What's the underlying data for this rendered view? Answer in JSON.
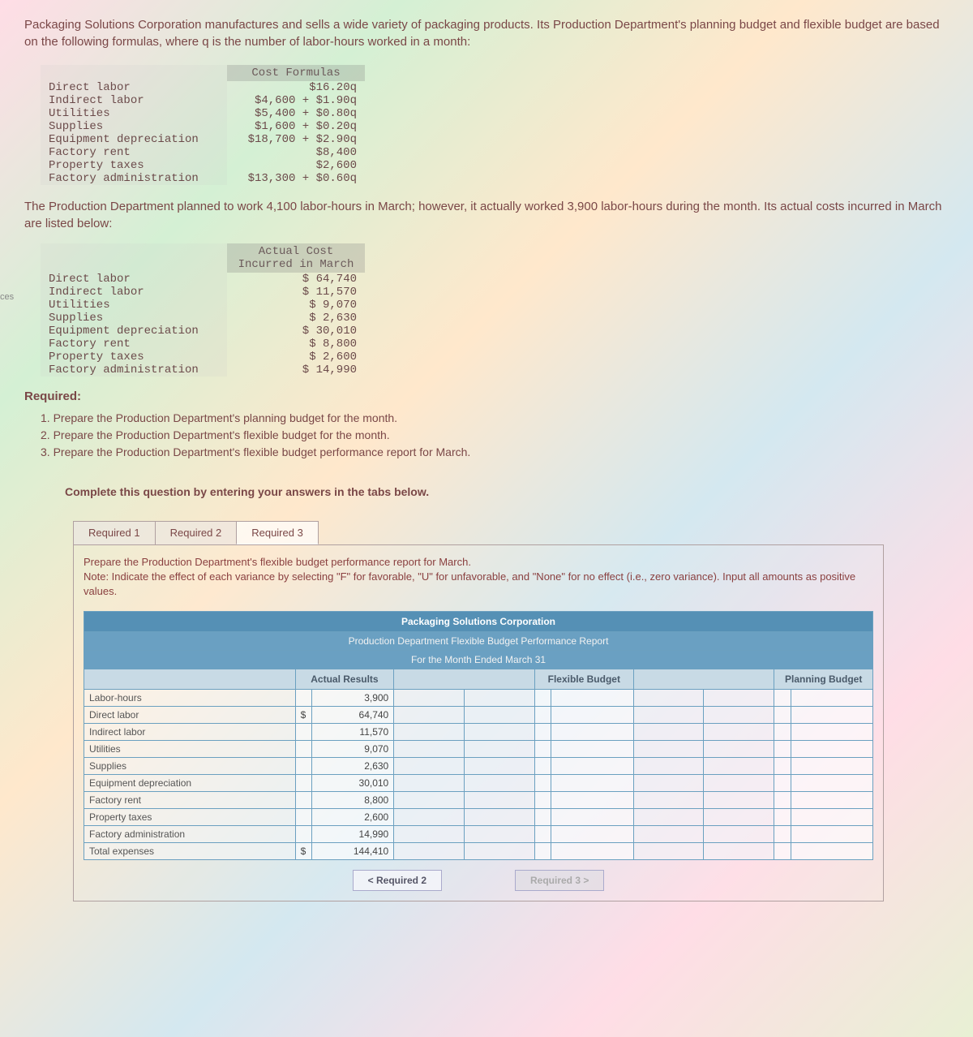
{
  "intro": "Packaging Solutions Corporation manufactures and sells a wide variety of packaging products. Its Production Department's planning budget and flexible budget are based on the following formulas, where q is the number of labor-hours worked in a month:",
  "side_label": "ces",
  "formula_header": "Cost Formulas",
  "formula_rows": [
    {
      "label": "Direct labor",
      "val": "$16.20q"
    },
    {
      "label": "Indirect labor",
      "val": "$4,600 + $1.90q"
    },
    {
      "label": "Utilities",
      "val": "$5,400 + $0.80q"
    },
    {
      "label": "Supplies",
      "val": "$1,600 + $0.20q"
    },
    {
      "label": "Equipment depreciation",
      "val": "$18,700 + $2.90q"
    },
    {
      "label": "Factory rent",
      "val": "$8,400"
    },
    {
      "label": "Property taxes",
      "val": "$2,600"
    },
    {
      "label": "Factory administration",
      "val": "$13,300 + $0.60q"
    }
  ],
  "para2": "The Production Department planned to work 4,100 labor-hours in March; however, it actually worked 3,900 labor-hours during the month. Its actual costs incurred in March are listed below:",
  "actual_header": "Actual Cost Incurred in March",
  "actual_rows": [
    {
      "label": "Direct labor",
      "val": "$ 64,740"
    },
    {
      "label": "Indirect labor",
      "val": "$ 11,570"
    },
    {
      "label": "Utilities",
      "val": "$ 9,070"
    },
    {
      "label": "Supplies",
      "val": "$ 2,630"
    },
    {
      "label": "Equipment depreciation",
      "val": "$ 30,010"
    },
    {
      "label": "Factory rent",
      "val": "$ 8,800"
    },
    {
      "label": "Property taxes",
      "val": "$ 2,600"
    },
    {
      "label": "Factory administration",
      "val": "$ 14,990"
    }
  ],
  "required_head": "Required:",
  "required_items": [
    "1. Prepare the Production Department's planning budget for the month.",
    "2. Prepare the Production Department's flexible budget for the month.",
    "3. Prepare the Production Department's flexible budget performance report for March."
  ],
  "instruction": "Complete this question by entering your answers in the tabs below.",
  "tabs": {
    "t1": "Required 1",
    "t2": "Required 2",
    "t3": "Required 3"
  },
  "active_tab": "t3",
  "prompt_line1": "Prepare the Production Department's flexible budget performance report for March.",
  "prompt_note": "Note: Indicate the effect of each variance by selecting \"F\" for favorable, \"U\" for unfavorable, and \"None\" for no effect (i.e., zero variance). Input all amounts as positive values.",
  "report": {
    "title": "Packaging Solutions Corporation",
    "subtitle": "Production Department Flexible Budget Performance Report",
    "period": "For the Month Ended March 31",
    "col_headers": {
      "actual": "Actual Results",
      "flex": "Flexible Budget",
      "plan": "Planning Budget"
    },
    "rows": [
      {
        "label": "Labor-hours",
        "cur": "",
        "val": "3,900"
      },
      {
        "label": "Direct labor",
        "cur": "$",
        "val": "64,740"
      },
      {
        "label": "Indirect labor",
        "cur": "",
        "val": "11,570"
      },
      {
        "label": "Utilities",
        "cur": "",
        "val": "9,070"
      },
      {
        "label": "Supplies",
        "cur": "",
        "val": "2,630"
      },
      {
        "label": "Equipment depreciation",
        "cur": "",
        "val": "30,010"
      },
      {
        "label": "Factory rent",
        "cur": "",
        "val": "8,800"
      },
      {
        "label": "Property taxes",
        "cur": "",
        "val": "2,600"
      },
      {
        "label": "Factory administration",
        "cur": "",
        "val": "14,990"
      },
      {
        "label": "Total expenses",
        "cur": "$",
        "val": "144,410"
      }
    ]
  },
  "nav": {
    "prev": "< Required 2",
    "next": "Required 3 >"
  }
}
